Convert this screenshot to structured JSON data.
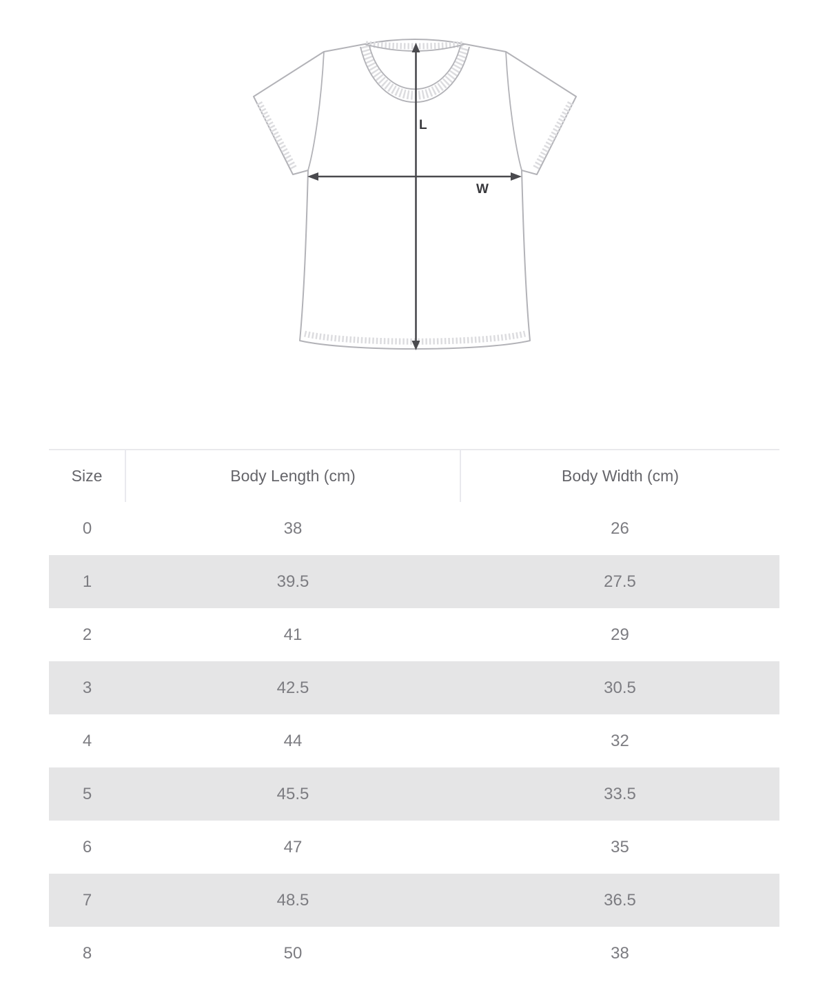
{
  "diagram": {
    "length_label": "L",
    "width_label": "W"
  },
  "table": {
    "columns": [
      "Size",
      "Body Length (cm)",
      "Body Width (cm)"
    ],
    "rows": [
      [
        "0",
        "38",
        "26"
      ],
      [
        "1",
        "39.5",
        "27.5"
      ],
      [
        "2",
        "41",
        "29"
      ],
      [
        "3",
        "42.5",
        "30.5"
      ],
      [
        "4",
        "44",
        "32"
      ],
      [
        "5",
        "45.5",
        "33.5"
      ],
      [
        "6",
        "47",
        "35"
      ],
      [
        "7",
        "48.5",
        "36.5"
      ],
      [
        "8",
        "50",
        "38"
      ]
    ]
  },
  "colors": {
    "alt_row_background": "#e5e5e6",
    "table_top_border": "#e9e9ec",
    "header_divider": "#e9e9ee",
    "header_text": "#65656a",
    "cell_text": "#7c7c81",
    "shirt_outline": "#b2b2b7",
    "shirt_stitch": "#dcdcdf",
    "dimension_arrow": "#4a4a4e"
  },
  "chart_data": {
    "type": "table",
    "columns": [
      "Size",
      "Body Length (cm)",
      "Body Width (cm)"
    ],
    "rows": [
      [
        0,
        38,
        26
      ],
      [
        1,
        39.5,
        27.5
      ],
      [
        2,
        41,
        29
      ],
      [
        3,
        42.5,
        30.5
      ],
      [
        4,
        44,
        32
      ],
      [
        5,
        45.5,
        33.5
      ],
      [
        6,
        47,
        35
      ],
      [
        7,
        48.5,
        36.5
      ],
      [
        8,
        50,
        38
      ]
    ],
    "annotations": [
      "L = body length (vertical arrow)",
      "W = body width (horizontal arrow)"
    ]
  }
}
